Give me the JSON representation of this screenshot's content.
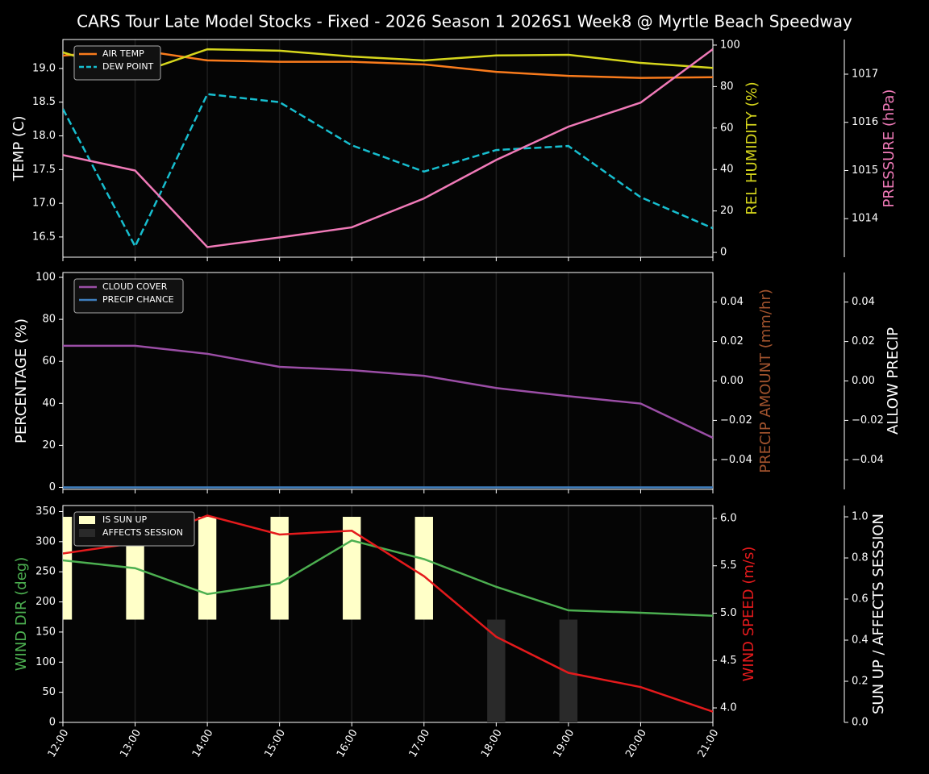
{
  "chart_data": [
    {
      "type": "line",
      "title": "CARS Tour Late Model Stocks - Fixed - 2026 Season 1 2026S1 Week8 @ Myrtle Beach Speedway",
      "ylabel": "TEMP (C)",
      "y2label": "REL HUMIDITY (%)",
      "y3label": "PRESSURE (hPa)",
      "axis_colors": {
        "y": "#ffffff",
        "y2": "#d6d61c",
        "y3": "#f07ab8"
      },
      "ylim": [
        16.2,
        19.43
      ],
      "yticks": [
        16.5,
        {
          "value": 17,
          "label": "17.0"
        },
        17.5,
        {
          "value": 18,
          "label": "18.0"
        },
        18.5,
        {
          "value": 19,
          "label": "19.0"
        }
      ],
      "y2lim": [
        -2.3,
        102.7
      ],
      "y2ticks": [
        0,
        20,
        40,
        60,
        80,
        100
      ],
      "y3lim": [
        1013.2,
        1017.72
      ],
      "y3ticks": [
        1014,
        1015,
        1016,
        1017
      ],
      "grid": "x",
      "series": [
        {
          "name": "AIR TEMP",
          "color": "#f97b1c",
          "axis": "y",
          "legend": true,
          "values": [
            19.19,
            19.28,
            19.12,
            19.1,
            19.1,
            19.06,
            18.95,
            18.89,
            18.86,
            18.87
          ]
        },
        {
          "name": "DEW POINT",
          "color": "#17becf",
          "axis": "y",
          "dashed": true,
          "legend": true,
          "values": [
            18.4,
            16.36,
            18.62,
            18.5,
            17.86,
            17.47,
            17.79,
            17.85,
            17.09,
            16.63
          ]
        },
        {
          "color": "#d6d61c",
          "axis": "y2",
          "values": [
            96.5,
            86,
            98,
            97.3,
            94.5,
            92.6,
            95,
            95.3,
            91.4,
            89
          ]
        },
        {
          "color": "#f07ab8",
          "axis": "y3",
          "values": [
            1015.32,
            1015.0,
            1013.41,
            1013.61,
            1013.82,
            1014.42,
            1015.22,
            1015.91,
            1016.41,
            1017.52
          ]
        }
      ]
    },
    {
      "type": "line",
      "ylabel": "PERCENTAGE (%)",
      "y2label": "PRECIP AMOUNT (mm/hr)",
      "y3label": "ALLOW PRECIP",
      "axis_colors": {
        "y": "#ffffff",
        "y2": "#a0522d",
        "y3": "#ffffff"
      },
      "ylim": [
        -0.97,
        102.3
      ],
      "yticks": [
        0,
        20,
        40,
        60,
        80,
        100
      ],
      "y2lim": [
        -0.055,
        0.055
      ],
      "y2ticks": [
        {
          "value": -0.04,
          "label": "−0.04"
        },
        {
          "value": -0.02,
          "label": "−0.02"
        },
        {
          "value": 0,
          "label": "0.00"
        },
        0.02,
        0.04
      ],
      "y3lim": [
        -0.055,
        0.055
      ],
      "y3ticks": [
        {
          "value": -0.04,
          "label": "−0.04"
        },
        {
          "value": -0.02,
          "label": "−0.02"
        },
        {
          "value": 0,
          "label": "0.00"
        },
        0.02,
        0.04
      ],
      "grid": "x",
      "series": [
        {
          "name": "CLOUD COVER",
          "color": "#9b4ea6",
          "axis": "y",
          "legend": true,
          "values": [
            67.4,
            67.4,
            63.6,
            57.4,
            55.8,
            53.1,
            47.3,
            43.4,
            39.9,
            23.6
          ]
        },
        {
          "name": "PRECIP CHANCE",
          "color": "#3f7fbf",
          "axis": "y",
          "legend": true,
          "values": [
            0,
            0,
            0,
            0,
            0,
            0,
            0,
            0,
            0,
            0
          ]
        }
      ]
    },
    {
      "type": "line",
      "categories": [
        "12:00",
        "13:00",
        "14:00",
        "15:00",
        "16:00",
        "17:00",
        "18:00",
        "19:00",
        "20:00",
        "21:00"
      ],
      "ylabel": "WIND DIR (deg)",
      "y2label": "WIND SPEED (m/s)",
      "y3label": "SUN UP / AFFECTS SESSION",
      "axis_colors": {
        "y": "#4caf50",
        "y2": "#e41a1c",
        "y3": "#ffffff"
      },
      "ylim": [
        0,
        360
      ],
      "yticks": [
        0,
        50,
        100,
        150,
        200,
        250,
        300,
        350
      ],
      "y2lim": [
        3.847,
        6.136
      ],
      "y2ticks": [
        {
          "value": 4,
          "label": "4.0"
        },
        4.5,
        {
          "value": 5,
          "label": "5.0"
        },
        5.5,
        {
          "value": 6,
          "label": "6.0"
        }
      ],
      "y3lim": [
        0,
        1.055
      ],
      "y3ticks": [
        {
          "value": 0,
          "label": "0.0"
        },
        0.2,
        0.4,
        0.6,
        0.8,
        {
          "value": 1,
          "label": "1.0"
        }
      ],
      "grid": "x",
      "series": [
        {
          "name": "IS SUN UP",
          "type": "bar",
          "color": "#ffffc8",
          "axis": "y3",
          "legend": true,
          "values": [
            1,
            1,
            1,
            1,
            1,
            1,
            0,
            0,
            0,
            0
          ]
        },
        {
          "name": "AFFECTS SESSION",
          "type": "bar",
          "color": "#2a2a2a",
          "axis": "y3",
          "legend": true,
          "values": [
            0,
            0,
            0,
            0,
            0,
            0,
            0.5,
            0.5,
            0,
            0
          ]
        },
        {
          "color": "#4caf50",
          "axis": "y",
          "values": [
            269,
            256,
            213,
            231,
            302,
            271,
            225,
            186,
            182,
            177
          ]
        },
        {
          "color": "#e41a1c",
          "axis": "y2",
          "values": [
            5.63,
            5.74,
            6.03,
            5.83,
            5.87,
            5.39,
            4.75,
            4.37,
            4.22,
            3.96
          ]
        }
      ]
    }
  ]
}
